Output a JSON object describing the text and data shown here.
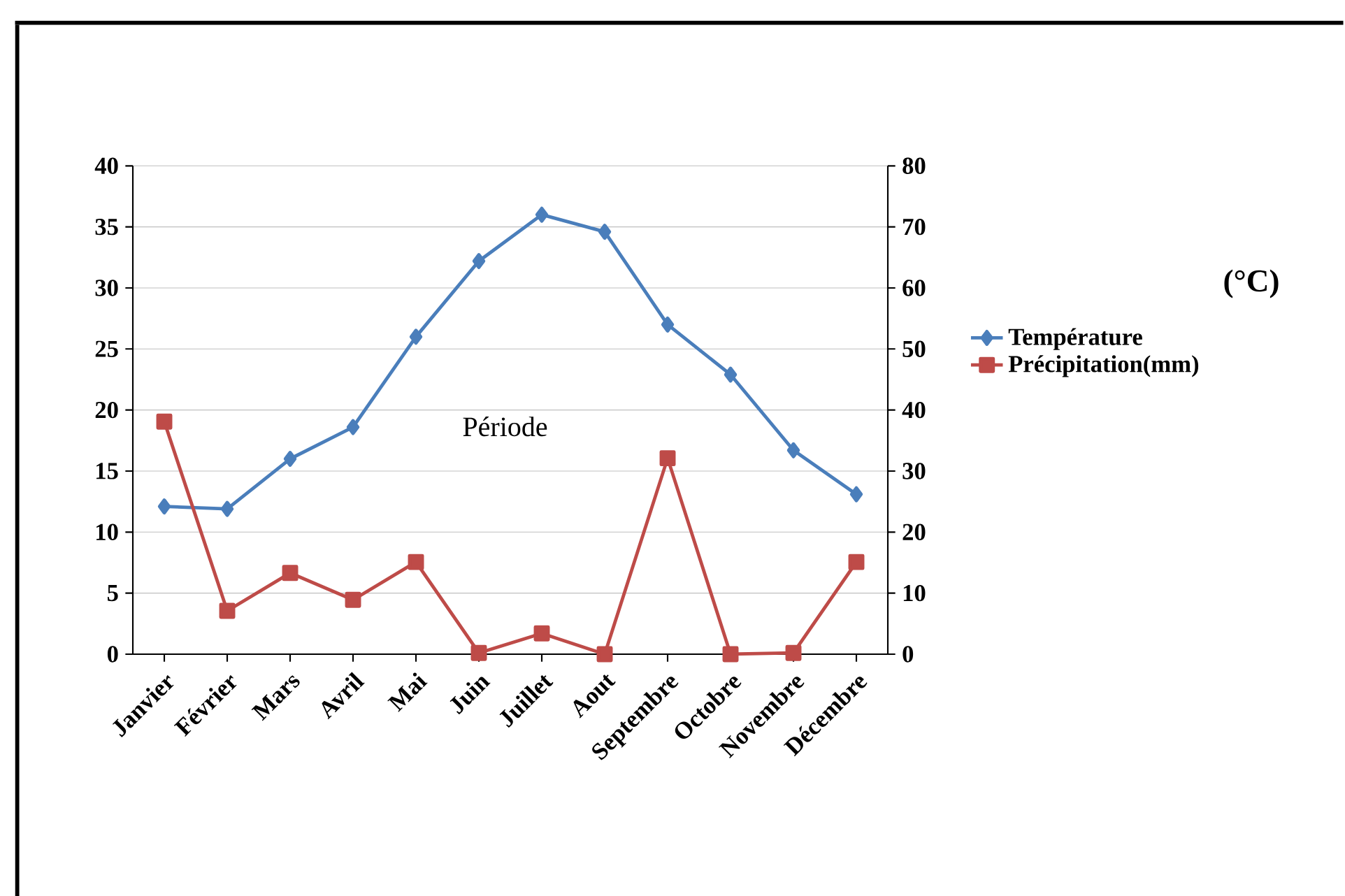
{
  "chart_data": {
    "type": "line",
    "xlabel": "Période",
    "categories": [
      "Janvier",
      "Février",
      "Mars",
      "Avril",
      "Mai",
      "Juin",
      "Juillet",
      "Aout",
      "Septembre",
      "Octobre",
      "Novembre",
      "Décembre"
    ],
    "series": [
      {
        "name": "Température",
        "color": "#4a7ebb",
        "marker": "diamond",
        "values": [
          12.1,
          11.9,
          16.0,
          18.6,
          26.0,
          32.2,
          36.0,
          34.6,
          27.0,
          22.9,
          16.7,
          13.1
        ]
      },
      {
        "name": "Précipitation(mm)",
        "color": "#be4b48",
        "marker": "square",
        "axis": "y2",
        "values": [
          38.1,
          7.1,
          13.3,
          8.9,
          15.1,
          0.2,
          3.4,
          0,
          32.1,
          0,
          0.2,
          15.1
        ]
      }
    ],
    "ylim": [
      0,
      40
    ],
    "yticks": [
      0,
      5,
      10,
      15,
      20,
      25,
      30,
      35,
      40
    ],
    "y2lim": [
      0,
      80
    ],
    "y2ticks": [
      0,
      10,
      20,
      30,
      40,
      50,
      60,
      70,
      80
    ],
    "annotations": [
      "(°C)"
    ],
    "grid": "y",
    "legend": "right",
    "line_style": "solid"
  }
}
